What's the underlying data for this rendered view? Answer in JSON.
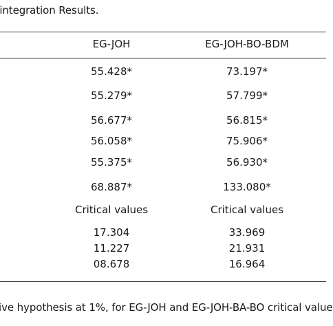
{
  "caption": "-integration Results.",
  "table": {
    "headers": [
      "EG-JOH",
      "EG-JOH-BO-BDM"
    ],
    "rows": [
      [
        "55.428*",
        "73.197*"
      ],
      [
        "55.279*",
        "57.799*"
      ],
      [
        "56.677*",
        "56.815*"
      ],
      [
        "56.058*",
        "75.906*"
      ],
      [
        "55.375*",
        "56.930*"
      ],
      [
        "68.887*",
        "133.080*"
      ],
      [
        "Critical values",
        "Critical values"
      ],
      [
        "17.304",
        "33.969"
      ],
      [
        "11.227",
        "21.931"
      ],
      [
        "08.678",
        "16.964"
      ]
    ]
  },
  "footnote": "ive hypothesis at 1%, for EG-JOH and EG-JOH-BA-BO critical value"
}
